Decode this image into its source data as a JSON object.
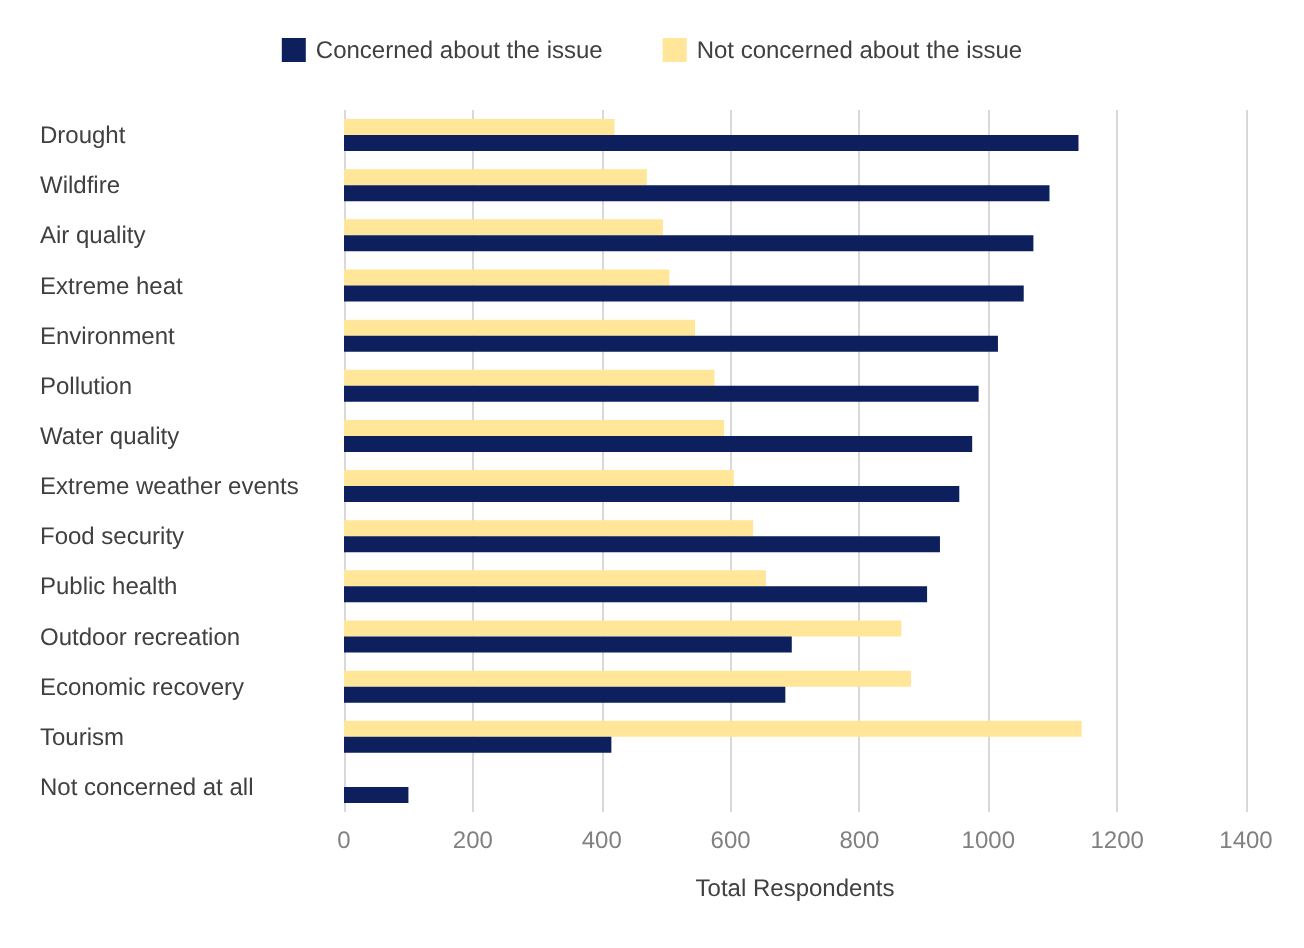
{
  "chart_data": {
    "type": "bar",
    "orientation": "horizontal",
    "xlabel": "Total Respondents",
    "categories": [
      "Drought",
      "Wildfire",
      "Air quality",
      "Extreme heat",
      "Environment",
      "Pollution",
      "Water quality",
      "Extreme weather events",
      "Food security",
      "Public health",
      "Outdoor recreation",
      "Economic recovery",
      "Tourism",
      "Not concerned at all"
    ],
    "series": [
      {
        "name": "Concerned about the issue",
        "color": "#0d1f5c",
        "values": [
          1140,
          1095,
          1070,
          1055,
          1015,
          985,
          975,
          955,
          925,
          905,
          695,
          685,
          415,
          100
        ]
      },
      {
        "name": "Not concerned about the issue",
        "color": "#ffe699",
        "values": [
          420,
          470,
          495,
          505,
          545,
          575,
          590,
          605,
          635,
          655,
          865,
          880,
          1145,
          null
        ]
      }
    ],
    "xlim": [
      0,
      1400
    ],
    "xticks": [
      0,
      200,
      400,
      600,
      800,
      1000,
      1200,
      1400
    ],
    "grid": "x",
    "legend": "top"
  }
}
